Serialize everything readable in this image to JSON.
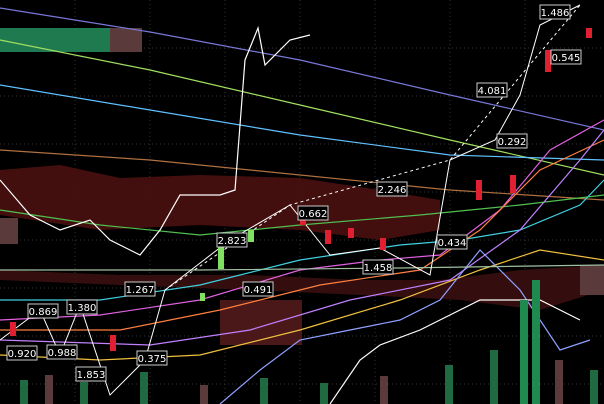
{
  "chart_data": {
    "type": "candlestick",
    "annotations": [
      "1.486",
      "4.081",
      "0.545",
      "0.292",
      "2.246",
      "0.662",
      "2.823",
      "0.434",
      "1.458",
      "1.267",
      "0.491",
      "1.380",
      "0.869",
      "0.920",
      "0.988",
      "0.375",
      "1.853"
    ]
  }
}
